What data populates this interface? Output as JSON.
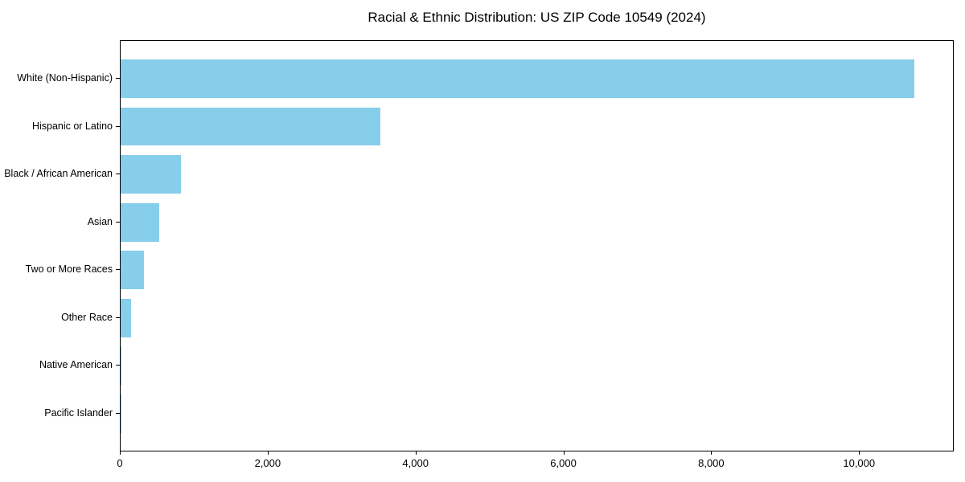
{
  "chart_data": {
    "type": "bar",
    "orientation": "horizontal",
    "title": "Racial & Ethnic Distribution: US ZIP Code 10549 (2024)",
    "categories": [
      "White (Non-Hispanic)",
      "Hispanic or Latino",
      "Black / African American",
      "Asian",
      "Two or More Races",
      "Other Race",
      "Native American",
      "Pacific Islander"
    ],
    "values": [
      10740,
      3510,
      815,
      520,
      320,
      145,
      5,
      2
    ],
    "xlabel": "",
    "ylabel": "",
    "xlim": [
      0,
      11270
    ],
    "xticks": [
      0,
      2000,
      4000,
      6000,
      8000,
      10000
    ],
    "xtick_labels": [
      "0",
      "2,000",
      "4,000",
      "6,000",
      "8,000",
      "10,000"
    ],
    "bar_color": "#87CEEB",
    "axis_color": "#000000",
    "text_color": "#000000",
    "background_color": "#FFFFFF",
    "grid": false,
    "legend": null
  }
}
